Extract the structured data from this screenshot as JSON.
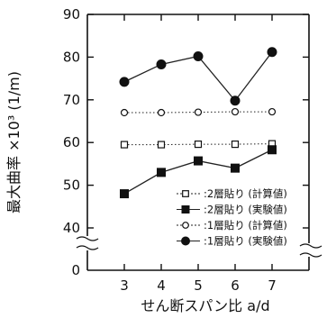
{
  "chart_data": {
    "type": "line",
    "xlabel": "せん断スパン比 a/d",
    "ylabel": "最大曲率 ×10³ (1/m)",
    "x": [
      3,
      4,
      5,
      6,
      7
    ],
    "x_ticks": [
      "3",
      "4",
      "5",
      "6",
      "7"
    ],
    "xlim": [
      2,
      8
    ],
    "y_ticks": [
      "0",
      "40",
      "50",
      "60",
      "70",
      "80",
      "90"
    ],
    "ylim": [
      0,
      90
    ],
    "y_axis_break": "0-40",
    "grid": false,
    "legend_position": "bottom-right",
    "series": [
      {
        "name": ":2層貼り (計算値)",
        "marker": "open-square",
        "line": "dotted",
        "values": [
          59.5,
          59.5,
          59.6,
          59.6,
          59.7
        ]
      },
      {
        "name": ":2層貼り (実験値)",
        "marker": "filled-square",
        "line": "solid",
        "values": [
          48,
          53,
          55.7,
          54,
          58.3
        ]
      },
      {
        "name": ":1層貼り (計算値)",
        "marker": "open-circle",
        "line": "dotted",
        "values": [
          67,
          67,
          67.1,
          67.2,
          67.2
        ]
      },
      {
        "name": ":1層貼り (実験値)",
        "marker": "filled-circle",
        "line": "solid",
        "values": [
          74.2,
          78.3,
          80.2,
          69.8,
          81.2
        ]
      }
    ]
  }
}
